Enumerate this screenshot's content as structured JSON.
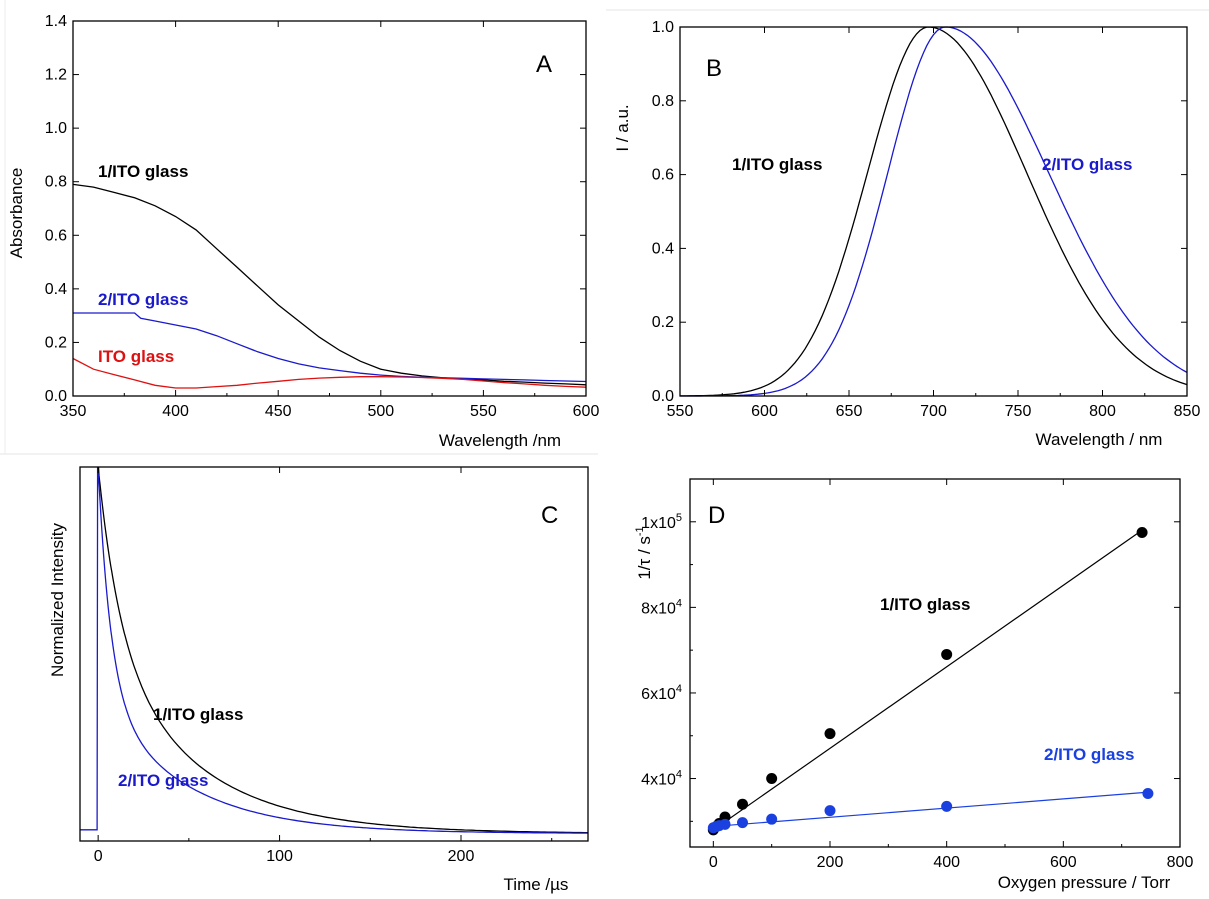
{
  "chart_data": [
    {
      "panel": "A",
      "type": "line",
      "xlabel": "Wavelength /nm",
      "ylabel": "Absorbance",
      "xlim": [
        350,
        600
      ],
      "ylim": [
        0,
        1.4
      ],
      "xticks": [
        "350",
        "400",
        "450",
        "500",
        "550",
        "600"
      ],
      "yticks": [
        "0.0",
        "0.2",
        "0.4",
        "0.6",
        "0.8",
        "1.0",
        "1.2",
        "1.4"
      ],
      "series": [
        {
          "name": "1/ITO glass",
          "color": "#000000",
          "x": [
            350,
            360,
            370,
            380,
            390,
            400,
            410,
            420,
            430,
            440,
            450,
            460,
            470,
            480,
            490,
            500,
            510,
            520,
            530,
            540,
            550,
            560,
            570,
            580,
            590,
            600
          ],
          "y": [
            0.79,
            0.78,
            0.76,
            0.74,
            0.71,
            0.67,
            0.62,
            0.55,
            0.48,
            0.41,
            0.34,
            0.28,
            0.22,
            0.17,
            0.13,
            0.1,
            0.085,
            0.075,
            0.068,
            0.063,
            0.06,
            0.055,
            0.052,
            0.048,
            0.045,
            0.042
          ]
        },
        {
          "name": "2/ITO glass",
          "color": "#1a1acc",
          "x": [
            350,
            360,
            370,
            380,
            383,
            390,
            400,
            410,
            420,
            430,
            440,
            450,
            460,
            470,
            480,
            490,
            500,
            510,
            520,
            530,
            540,
            550,
            560,
            570,
            580,
            590,
            600
          ],
          "y": [
            0.31,
            0.31,
            0.31,
            0.31,
            0.29,
            0.28,
            0.265,
            0.25,
            0.225,
            0.195,
            0.165,
            0.14,
            0.12,
            0.105,
            0.095,
            0.085,
            0.078,
            0.073,
            0.07,
            0.068,
            0.066,
            0.064,
            0.062,
            0.06,
            0.058,
            0.056,
            0.054
          ]
        },
        {
          "name": "ITO glass",
          "color": "#dd1111",
          "x": [
            350,
            360,
            370,
            380,
            390,
            400,
            410,
            420,
            430,
            440,
            450,
            460,
            470,
            480,
            490,
            500,
            510,
            520,
            530,
            540,
            550,
            560,
            570,
            580,
            590,
            600
          ],
          "y": [
            0.14,
            0.1,
            0.08,
            0.06,
            0.04,
            0.03,
            0.03,
            0.035,
            0.04,
            0.048,
            0.055,
            0.062,
            0.067,
            0.07,
            0.072,
            0.072,
            0.071,
            0.069,
            0.066,
            0.062,
            0.056,
            0.05,
            0.045,
            0.04,
            0.036,
            0.033
          ]
        }
      ],
      "annotations": [
        {
          "text": "A"
        },
        {
          "text": "1/ITO glass"
        },
        {
          "text": "2/ITO glass"
        },
        {
          "text": "ITO glass"
        }
      ]
    },
    {
      "panel": "B",
      "type": "line",
      "xlabel": "Wavelength / nm",
      "ylabel": "I / a.u.",
      "xlim": [
        550,
        850
      ],
      "ylim": [
        0,
        1.0
      ],
      "xticks": [
        "550",
        "600",
        "650",
        "700",
        "750",
        "800",
        "850"
      ],
      "yticks": [
        "0.0",
        "0.2",
        "0.4",
        "0.6",
        "0.8",
        "1.0"
      ],
      "series": [
        {
          "name": "1/ITO glass",
          "color": "#000000",
          "peak": 697,
          "sigma_left": 36,
          "sigma_right": 58
        },
        {
          "name": "2/ITO glass",
          "color": "#1a1acc",
          "peak": 707,
          "sigma_left": 34,
          "sigma_right": 61
        }
      ],
      "annotations": [
        {
          "text": "B"
        },
        {
          "text": "1/ITO glass"
        },
        {
          "text": "2/ITO glass"
        }
      ]
    },
    {
      "panel": "C",
      "type": "line",
      "xlabel": "Time /µs",
      "ylabel": "Normalized Intensity",
      "xlim": [
        -10,
        270
      ],
      "ylim": [
        0,
        1.0
      ],
      "xticks": [
        "0",
        "100",
        "200"
      ],
      "series": [
        {
          "name": "1/ITO glass",
          "color": "#000000",
          "tau_fast": 12,
          "tau_slow": 50,
          "fast_fraction": 0.45
        },
        {
          "name": "2/ITO glass",
          "color": "#1a1acc",
          "tau_fast": 7,
          "tau_slow": 46,
          "fast_fraction": 0.62
        }
      ],
      "annotations": [
        {
          "text": "C"
        },
        {
          "text": "1/ITO glass"
        },
        {
          "text": "2/ITO glass"
        }
      ]
    },
    {
      "panel": "D",
      "type": "scatter",
      "xlabel": "Oxygen pressure / Torr",
      "ylabel": "1/τ / s",
      "ylabel_exp": "-1",
      "xlim": [
        -40,
        800
      ],
      "ylim": [
        24000,
        110000
      ],
      "xticks": [
        "0",
        "200",
        "400",
        "600",
        "800"
      ],
      "yticks": [
        {
          "value": 40000,
          "mant": "4x10",
          "exp": "4"
        },
        {
          "value": 60000,
          "mant": "6x10",
          "exp": "4"
        },
        {
          "value": 80000,
          "mant": "8x10",
          "exp": "4"
        },
        {
          "value": 100000,
          "mant": "1x10",
          "exp": "5"
        }
      ],
      "series": [
        {
          "name": "1/ITO glass",
          "color": "#000000",
          "x": [
            0,
            5,
            10,
            20,
            50,
            100,
            200,
            400,
            735
          ],
          "y": [
            28000,
            28800,
            29500,
            31000,
            34000,
            40000,
            50500,
            69000,
            97500
          ],
          "fit": [
            [
              0,
              28000
            ],
            [
              740,
              98500
            ]
          ]
        },
        {
          "name": "2/ITO glass",
          "color": "#1a40e0",
          "x": [
            0,
            5,
            10,
            20,
            50,
            100,
            200,
            400,
            745
          ],
          "y": [
            28500,
            28800,
            29000,
            29300,
            29700,
            30500,
            32500,
            33500,
            36500
          ],
          "fit": [
            [
              0,
              28800
            ],
            [
              745,
              36800
            ]
          ]
        }
      ],
      "annotations": [
        {
          "text": "D"
        },
        {
          "text": "1/ITO glass"
        },
        {
          "text": "2/ITO glass"
        }
      ]
    }
  ]
}
